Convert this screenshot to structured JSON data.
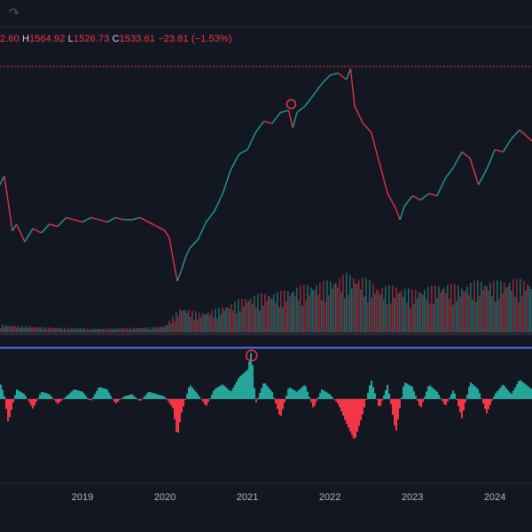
{
  "toolbar": {
    "redo_icon": "redo-icon"
  },
  "ohlc": {
    "open_value": "2.60",
    "high_key": "H",
    "high_value": "1564.92",
    "low_key": "L",
    "low_value": "1526.73",
    "close_key": "C",
    "close_value": "1533.61",
    "change": "−23.81 (−1.53%)"
  },
  "colors": {
    "background": "#131722",
    "up": "#26a69a",
    "down": "#f23645",
    "reference_line": "#5b6ee1",
    "marker": "#f23645"
  },
  "chart_data": {
    "type": "line",
    "x_axis_ticks": [
      "2019",
      "2020",
      "2021",
      "2022",
      "2023",
      "2024"
    ],
    "x_range": [
      2018.0,
      2024.45
    ],
    "price_series": {
      "x": [
        2018.0,
        2018.05,
        2018.1,
        2018.15,
        2018.2,
        2018.3,
        2018.4,
        2018.5,
        2018.6,
        2018.7,
        2018.8,
        2018.9,
        2019.0,
        2019.1,
        2019.2,
        2019.3,
        2019.4,
        2019.5,
        2019.6,
        2019.7,
        2019.8,
        2019.9,
        2020.0,
        2020.05,
        2020.1,
        2020.15,
        2020.2,
        2020.25,
        2020.3,
        2020.4,
        2020.5,
        2020.6,
        2020.7,
        2020.8,
        2020.9,
        2021.0,
        2021.1,
        2021.2,
        2021.3,
        2021.4,
        2021.5,
        2021.55,
        2021.6,
        2021.7,
        2021.8,
        2021.9,
        2022.0,
        2022.1,
        2022.2,
        2022.25,
        2022.3,
        2022.4,
        2022.5,
        2022.6,
        2022.7,
        2022.8,
        2022.85,
        2022.9,
        2023.0,
        2023.1,
        2023.2,
        2023.3,
        2023.4,
        2023.5,
        2023.6,
        2023.7,
        2023.8,
        2023.9,
        2024.0,
        2024.1,
        2024.2,
        2024.3,
        2024.45
      ],
      "y": [
        0.46,
        0.5,
        0.38,
        0.25,
        0.28,
        0.2,
        0.26,
        0.24,
        0.28,
        0.27,
        0.31,
        0.3,
        0.29,
        0.31,
        0.3,
        0.29,
        0.31,
        0.3,
        0.3,
        0.31,
        0.29,
        0.27,
        0.25,
        0.22,
        0.12,
        0.02,
        0.07,
        0.13,
        0.17,
        0.21,
        0.29,
        0.34,
        0.42,
        0.53,
        0.6,
        0.62,
        0.7,
        0.75,
        0.74,
        0.79,
        0.8,
        0.72,
        0.79,
        0.82,
        0.87,
        0.92,
        0.96,
        0.97,
        0.94,
        0.99,
        0.82,
        0.74,
        0.7,
        0.56,
        0.42,
        0.35,
        0.3,
        0.36,
        0.41,
        0.39,
        0.42,
        0.41,
        0.49,
        0.54,
        0.61,
        0.58,
        0.46,
        0.53,
        0.62,
        0.61,
        0.67,
        0.71,
        0.66
      ]
    },
    "price_marker": {
      "x": 2021.53,
      "y": 0.82
    },
    "price_reference_line": {
      "y": 1.0
    },
    "volume_series": {
      "x": [
        2018.0,
        2018.3,
        2018.6,
        2018.9,
        2019.2,
        2019.5,
        2019.8,
        2020.0,
        2020.2,
        2020.4,
        2020.6,
        2020.8,
        2021.0,
        2021.2,
        2021.4,
        2021.6,
        2021.8,
        2022.0,
        2022.2,
        2022.4,
        2022.6,
        2022.8,
        2023.0,
        2023.2,
        2023.4,
        2023.6,
        2023.8,
        2024.0,
        2024.2,
        2024.45
      ],
      "y": [
        0.12,
        0.1,
        0.08,
        0.07,
        0.06,
        0.07,
        0.08,
        0.1,
        0.4,
        0.3,
        0.35,
        0.45,
        0.55,
        0.6,
        0.62,
        0.7,
        0.75,
        0.8,
        0.9,
        0.85,
        0.7,
        0.72,
        0.65,
        0.7,
        0.75,
        0.72,
        0.8,
        0.78,
        0.82,
        0.8
      ]
    },
    "oscillator_series": {
      "x": [
        2018.0,
        2018.05,
        2018.1,
        2018.2,
        2018.3,
        2018.4,
        2018.5,
        2018.6,
        2018.7,
        2018.8,
        2018.9,
        2019.0,
        2019.1,
        2019.2,
        2019.3,
        2019.4,
        2019.5,
        2019.6,
        2019.7,
        2019.8,
        2019.9,
        2020.0,
        2020.1,
        2020.15,
        2020.2,
        2020.3,
        2020.4,
        2020.5,
        2020.6,
        2020.7,
        2020.8,
        2020.9,
        2021.0,
        2021.05,
        2021.1,
        2021.2,
        2021.3,
        2021.4,
        2021.5,
        2021.6,
        2021.7,
        2021.8,
        2021.9,
        2022.0,
        2022.1,
        2022.2,
        2022.3,
        2022.4,
        2022.5,
        2022.6,
        2022.7,
        2022.8,
        2022.9,
        2023.0,
        2023.1,
        2023.2,
        2023.3,
        2023.4,
        2023.5,
        2023.6,
        2023.7,
        2023.8,
        2023.9,
        2024.0,
        2024.1,
        2024.2,
        2024.3,
        2024.45
      ],
      "y": [
        0.35,
        0.1,
        -0.5,
        0.2,
        0.1,
        -0.2,
        0.15,
        0.1,
        -0.1,
        0.05,
        0.2,
        0.15,
        -0.05,
        0.25,
        0.2,
        -0.1,
        0.05,
        0.1,
        -0.05,
        0.15,
        0.1,
        0.05,
        -0.2,
        -0.8,
        -0.3,
        0.3,
        0.1,
        -0.15,
        0.2,
        0.3,
        0.15,
        0.45,
        0.6,
        1.0,
        -0.1,
        0.35,
        0.15,
        -0.4,
        0.25,
        0.15,
        0.3,
        -0.2,
        0.2,
        0.1,
        -0.1,
        -0.5,
        -0.85,
        -0.3,
        0.4,
        -0.2,
        0.3,
        -0.7,
        0.35,
        0.25,
        -0.2,
        0.3,
        0.15,
        -0.15,
        0.2,
        -0.4,
        0.35,
        0.2,
        -0.3,
        0.1,
        0.3,
        0.1,
        0.4,
        0.2
      ]
    },
    "oscillator_marker": {
      "x": 2021.05,
      "y": 1.0
    },
    "oscillator_reference_line": {
      "y": 1.05
    }
  }
}
